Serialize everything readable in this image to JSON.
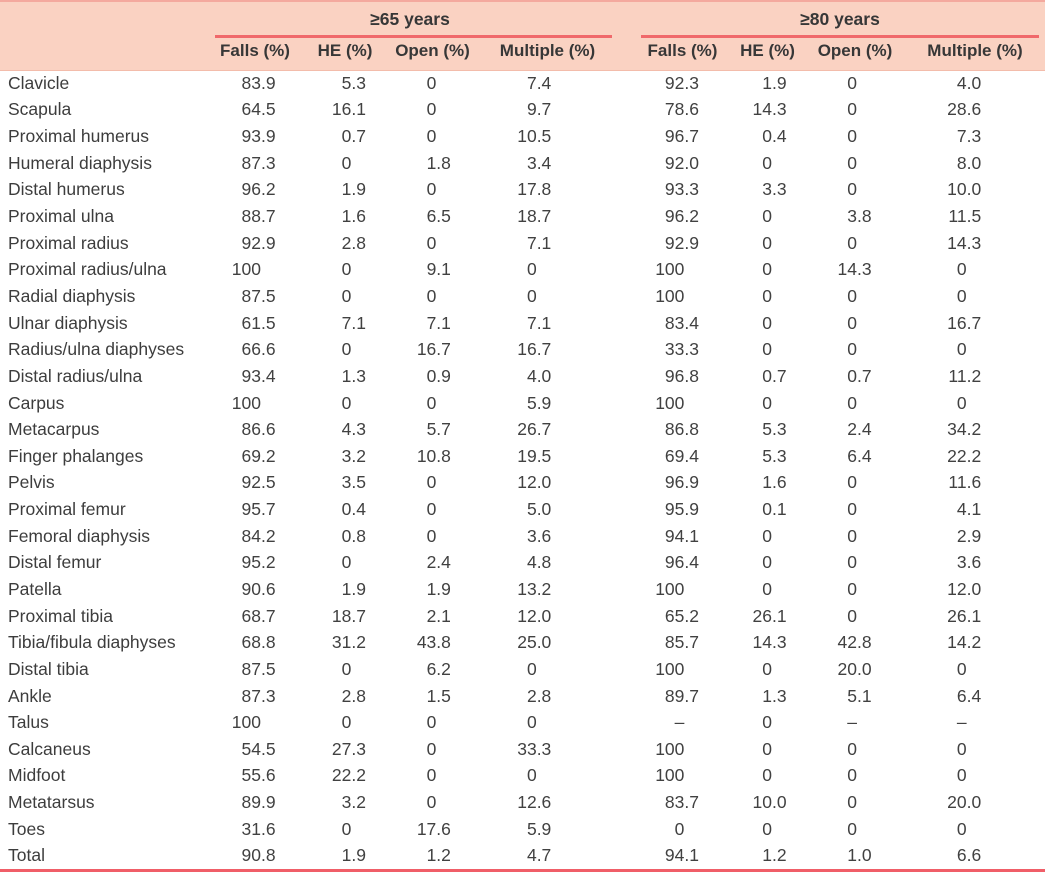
{
  "table": {
    "groups": [
      {
        "label": "≥65 years",
        "columns": [
          "Falls (%)",
          "HE (%)",
          "Open (%)",
          "Multiple (%)"
        ]
      },
      {
        "label": "≥80 years",
        "columns": [
          "Falls (%)",
          "HE (%)",
          "Open (%)",
          "Multiple (%)"
        ]
      }
    ],
    "rows": [
      {
        "label": "Clavicle",
        "values": [
          "83.9",
          "5.3",
          "0",
          "7.4",
          "92.3",
          "1.9",
          "0",
          "4.0"
        ]
      },
      {
        "label": "Scapula",
        "values": [
          "64.5",
          "16.1",
          "0",
          "9.7",
          "78.6",
          "14.3",
          "0",
          "28.6"
        ]
      },
      {
        "label": "Proximal humerus",
        "values": [
          "93.9",
          "0.7",
          "0",
          "10.5",
          "96.7",
          "0.4",
          "0",
          "7.3"
        ]
      },
      {
        "label": "Humeral diaphysis",
        "values": [
          "87.3",
          "0",
          "1.8",
          "3.4",
          "92.0",
          "0",
          "0",
          "8.0"
        ]
      },
      {
        "label": "Distal humerus",
        "values": [
          "96.2",
          "1.9",
          "0",
          "17.8",
          "93.3",
          "3.3",
          "0",
          "10.0"
        ]
      },
      {
        "label": "Proximal ulna",
        "values": [
          "88.7",
          "1.6",
          "6.5",
          "18.7",
          "96.2",
          "0",
          "3.8",
          "11.5"
        ]
      },
      {
        "label": "Proximal radius",
        "values": [
          "92.9",
          "2.8",
          "0",
          "7.1",
          "92.9",
          "0",
          "0",
          "14.3"
        ]
      },
      {
        "label": "Proximal radius/ulna",
        "values": [
          "100",
          "0",
          "9.1",
          "0",
          "100",
          "0",
          "14.3",
          "0"
        ]
      },
      {
        "label": "Radial diaphysis",
        "values": [
          "87.5",
          "0",
          "0",
          "0",
          "100",
          "0",
          "0",
          "0"
        ]
      },
      {
        "label": "Ulnar diaphysis",
        "values": [
          "61.5",
          "7.1",
          "7.1",
          "7.1",
          "83.4",
          "0",
          "0",
          "16.7"
        ]
      },
      {
        "label": "Radius/ulna diaphyses",
        "values": [
          "66.6",
          "0",
          "16.7",
          "16.7",
          "33.3",
          "0",
          "0",
          "0"
        ]
      },
      {
        "label": "Distal radius/ulna",
        "values": [
          "93.4",
          "1.3",
          "0.9",
          "4.0",
          "96.8",
          "0.7",
          "0.7",
          "11.2"
        ]
      },
      {
        "label": "Carpus",
        "values": [
          "100",
          "0",
          "0",
          "5.9",
          "100",
          "0",
          "0",
          "0"
        ]
      },
      {
        "label": "Metacarpus",
        "values": [
          "86.6",
          "4.3",
          "5.7",
          "26.7",
          "86.8",
          "5.3",
          "2.4",
          "34.2"
        ]
      },
      {
        "label": "Finger phalanges",
        "values": [
          "69.2",
          "3.2",
          "10.8",
          "19.5",
          "69.4",
          "5.3",
          "6.4",
          "22.2"
        ]
      },
      {
        "label": "Pelvis",
        "values": [
          "92.5",
          "3.5",
          "0",
          "12.0",
          "96.9",
          "1.6",
          "0",
          "11.6"
        ]
      },
      {
        "label": "Proximal femur",
        "values": [
          "95.7",
          "0.4",
          "0",
          "5.0",
          "95.9",
          "0.1",
          "0",
          "4.1"
        ]
      },
      {
        "label": "Femoral diaphysis",
        "values": [
          "84.2",
          "0.8",
          "0",
          "3.6",
          "94.1",
          "0",
          "0",
          "2.9"
        ]
      },
      {
        "label": "Distal femur",
        "values": [
          "95.2",
          "0",
          "2.4",
          "4.8",
          "96.4",
          "0",
          "0",
          "3.6"
        ]
      },
      {
        "label": "Patella",
        "values": [
          "90.6",
          "1.9",
          "1.9",
          "13.2",
          "100",
          "0",
          "0",
          "12.0"
        ]
      },
      {
        "label": "Proximal tibia",
        "values": [
          "68.7",
          "18.7",
          "2.1",
          "12.0",
          "65.2",
          "26.1",
          "0",
          "26.1"
        ]
      },
      {
        "label": "Tibia/fibula diaphyses",
        "values": [
          "68.8",
          "31.2",
          "43.8",
          "25.0",
          "85.7",
          "14.3",
          "42.8",
          "14.2"
        ]
      },
      {
        "label": "Distal tibia",
        "values": [
          "87.5",
          "0",
          "6.2",
          "0",
          "100",
          "0",
          "20.0",
          "0"
        ]
      },
      {
        "label": "Ankle",
        "values": [
          "87.3",
          "2.8",
          "1.5",
          "2.8",
          "89.7",
          "1.3",
          "5.1",
          "6.4"
        ]
      },
      {
        "label": "Talus",
        "values": [
          "100",
          "0",
          "0",
          "0",
          "–",
          "0",
          "–",
          "–"
        ]
      },
      {
        "label": "Calcaneus",
        "values": [
          "54.5",
          "27.3",
          "0",
          "33.3",
          "100",
          "0",
          "0",
          "0"
        ]
      },
      {
        "label": "Midfoot",
        "values": [
          "55.6",
          "22.2",
          "0",
          "0",
          "100",
          "0",
          "0",
          "0"
        ]
      },
      {
        "label": "Metatarsus",
        "values": [
          "89.9",
          "3.2",
          "0",
          "12.6",
          "83.7",
          "10.0",
          "0",
          "20.0"
        ]
      },
      {
        "label": "Toes",
        "values": [
          "31.6",
          "0",
          "17.6",
          "5.9",
          "0",
          "0",
          "0",
          "0"
        ]
      },
      {
        "label": "Total",
        "values": [
          "90.8",
          "1.9",
          "1.2",
          "4.7",
          "94.1",
          "1.2",
          "1.0",
          "6.6"
        ]
      }
    ]
  },
  "colors": {
    "header_background": "#fad2c2",
    "group_underline": "#f0696b",
    "top_rule": "#f4a99e",
    "bottom_rule": "#f05e68",
    "header_text": "#373737",
    "body_text": "#414141"
  }
}
